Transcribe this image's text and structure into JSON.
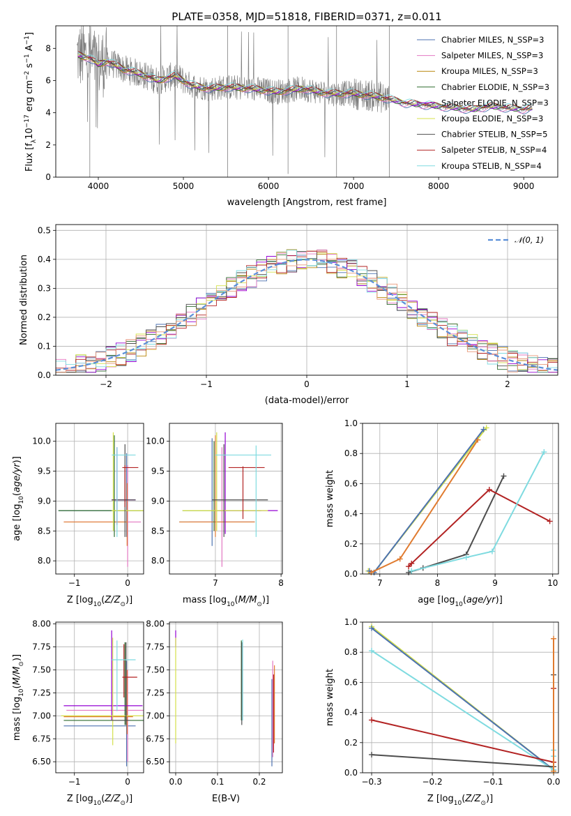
{
  "colors": {
    "chabrier_miles": "#4c72b0",
    "salpeter_miles": "#e377c2",
    "kroupa_miles": "#b8860b",
    "chabrier_elodie": "#2e6b2e",
    "salpeter_elodie": "#9400d3",
    "kroupa_elodie": "#d4e04a",
    "chabrier_stelib": "#4d4d4d",
    "salpeter_stelib": "#b22222",
    "kroupa_stelib": "#7fdbe0",
    "kroupa_orange": "#e07b2f",
    "hist_peach": "#e89a7a",
    "data_grey": "#808080",
    "normal_dash": "#5b8fd9"
  },
  "chart_data": [
    {
      "id": "spectrum",
      "type": "line",
      "title": "PLATE=0358, MJD=51818, FIBERID=0371, z=0.011",
      "xlabel": "wavelength [Angstrom, rest frame]",
      "ylabel": "Flux [f_λ 10^-17 erg cm^-2 s^-1 A^-1]",
      "xlim": [
        3500,
        9400
      ],
      "ylim": [
        0,
        9.4
      ],
      "xticks": [
        4000,
        5000,
        6000,
        7000,
        8000,
        9000
      ],
      "yticks": [
        0,
        2,
        4,
        6,
        8
      ],
      "grid": false,
      "legend_position": "top-right",
      "legend": [
        {
          "label": "Chabrier MILES, N_SSP=3",
          "color_key": "chabrier_miles"
        },
        {
          "label": "Salpeter MILES, N_SSP=3",
          "color_key": "salpeter_miles"
        },
        {
          "label": "Kroupa MILES, N_SSP=3",
          "color_key": "kroupa_miles"
        },
        {
          "label": "Chabrier ELODIE, N_SSP=3",
          "color_key": "chabrier_elodie"
        },
        {
          "label": "Salpeter ELODIE, N_SSP=3",
          "color_key": "salpeter_elodie"
        },
        {
          "label": "Kroupa ELODIE, N_SSP=3",
          "color_key": "kroupa_elodie"
        },
        {
          "label": "Chabrier STELIB, N_SSP=5",
          "color_key": "chabrier_stelib"
        },
        {
          "label": "Salpeter STELIB, N_SSP=4",
          "color_key": "salpeter_stelib"
        },
        {
          "label": "Kroupa STELIB, N_SSP=4",
          "color_key": "kroupa_stelib"
        }
      ],
      "continuum": {
        "x": [
          3750,
          3900,
          4000,
          4100,
          4300,
          4500,
          4700,
          4900,
          5100,
          5300,
          5500,
          5800,
          6100,
          6400,
          6700,
          7000,
          7300,
          7600,
          7800,
          8000,
          8200,
          8400,
          8600,
          8800,
          9000,
          9100
        ],
        "y": [
          7.6,
          7.4,
          7.0,
          7.2,
          6.7,
          6.4,
          6.0,
          6.3,
          5.7,
          5.5,
          5.6,
          5.5,
          5.3,
          5.5,
          5.2,
          5.2,
          5.0,
          4.6,
          4.5,
          4.4,
          4.3,
          4.2,
          4.4,
          4.3,
          4.2,
          4.3
        ]
      }
    },
    {
      "id": "residuals",
      "type": "histogram",
      "xlabel": "(data-model)/error",
      "ylabel": "Normed distribution",
      "xlim": [
        -2.5,
        2.5
      ],
      "ylim": [
        0,
        0.52
      ],
      "xticks": [
        -2,
        -1,
        0,
        1,
        2
      ],
      "yticks": [
        0.0,
        0.1,
        0.2,
        0.3,
        0.4,
        0.5
      ],
      "grid": true,
      "legend_position": "top-right",
      "legend": [
        {
          "label": "𝒩(0, 1)",
          "style": "dashed",
          "color_key": "normal_dash"
        }
      ],
      "bin_width": 0.1,
      "bin_start": -2.5
    },
    {
      "id": "age_vs_Z",
      "type": "errorbar",
      "xlabel": "Z [log10(Z/Z☉)]",
      "ylabel": "age [log10(age/yr)]",
      "xlim": [
        -1.35,
        0.3
      ],
      "ylim": [
        7.78,
        10.3
      ],
      "xticks": [
        -1,
        0
      ],
      "yticks": [
        8.0,
        8.5,
        9.0,
        9.5,
        10.0
      ],
      "grid": true
    },
    {
      "id": "age_vs_mass",
      "type": "errorbar",
      "xlabel": "mass [log10(M/M☉)]",
      "ylabel": "",
      "xlim": [
        6.3,
        8.02
      ],
      "ylim": [
        7.78,
        10.3
      ],
      "xticks": [
        7,
        8
      ],
      "yticks": [
        8.0,
        8.5,
        9.0,
        9.5,
        10.0
      ],
      "grid": true
    },
    {
      "id": "massweight_vs_age",
      "type": "line",
      "xlabel": "age [log10(age/yr)]",
      "ylabel": "mass weight",
      "xlim": [
        6.7,
        10.1
      ],
      "ylim": [
        0,
        1
      ],
      "xticks": [
        7,
        8,
        9,
        10
      ],
      "yticks": [
        0.0,
        0.2,
        0.4,
        0.6,
        0.8,
        1.0
      ],
      "grid": true,
      "series": [
        {
          "color_key": "kroupa_elodie",
          "x": [
            6.8,
            6.9,
            8.85
          ],
          "y": [
            0.02,
            0.01,
            0.97
          ]
        },
        {
          "color_key": "chabrier_miles",
          "x": [
            6.82,
            6.9,
            8.8
          ],
          "y": [
            0.02,
            0.01,
            0.96
          ]
        },
        {
          "color_key": "kroupa_orange",
          "x": [
            6.85,
            7.35,
            8.7
          ],
          "y": [
            0.01,
            0.1,
            0.89
          ]
        },
        {
          "color_key": "chabrier_stelib",
          "x": [
            7.5,
            7.75,
            8.5,
            9.15
          ],
          "y": [
            0.01,
            0.04,
            0.13,
            0.65
          ]
        },
        {
          "color_key": "salpeter_stelib",
          "x": [
            7.5,
            7.55,
            8.9,
            9.95
          ],
          "y": [
            0.05,
            0.07,
            0.56,
            0.35
          ]
        },
        {
          "color_key": "kroupa_stelib",
          "x": [
            7.55,
            8.5,
            8.95,
            9.85
          ],
          "y": [
            0.02,
            0.11,
            0.15,
            0.81
          ]
        }
      ]
    },
    {
      "id": "mass_vs_Z",
      "type": "errorbar",
      "xlabel": "Z [log10(Z/Z☉)]",
      "ylabel": "mass [log10(M/M☉)]",
      "xlim": [
        -1.35,
        0.3
      ],
      "ylim": [
        6.38,
        8.02
      ],
      "xticks": [
        -1,
        0
      ],
      "yticks": [
        6.5,
        6.75,
        7.0,
        7.25,
        7.5,
        7.75,
        8.0
      ],
      "grid": true
    },
    {
      "id": "mass_vs_ebv",
      "type": "errorbar",
      "xlabel": "E(B-V)",
      "ylabel": "",
      "xlim": [
        -0.015,
        0.255
      ],
      "ylim": [
        6.38,
        8.02
      ],
      "xticks": [
        0.0,
        0.1,
        0.2
      ],
      "yticks": [
        6.5,
        6.75,
        7.0,
        7.25,
        7.5,
        7.75,
        8.0
      ],
      "grid": true
    },
    {
      "id": "massweight_vs_Z",
      "type": "line",
      "xlabel": "Z [log10(Z/Z☉)]",
      "ylabel": "mass weight",
      "xlim": [
        -0.315,
        0.008
      ],
      "ylim": [
        0,
        1
      ],
      "xticks": [
        -0.3,
        -0.2,
        -0.1,
        0.0
      ],
      "yticks": [
        0.0,
        0.2,
        0.4,
        0.6,
        0.8,
        1.0
      ],
      "grid": true,
      "series": [
        {
          "color_key": "kroupa_elodie",
          "x": [
            -0.3,
            0.0,
            0.0
          ],
          "y": [
            0.97,
            0.02,
            0.01
          ]
        },
        {
          "color_key": "chabrier_miles",
          "x": [
            -0.3,
            0.0
          ],
          "y": [
            0.96,
            0.02
          ]
        },
        {
          "color_key": "kroupa_stelib",
          "x": [
            -0.3,
            0.0,
            0.0,
            0.0
          ],
          "y": [
            0.81,
            0.02,
            0.11,
            0.15
          ]
        },
        {
          "color_key": "salpeter_stelib",
          "x": [
            -0.3,
            0.0,
            0.0
          ],
          "y": [
            0.35,
            0.07,
            0.56
          ]
        },
        {
          "color_key": "chabrier_stelib",
          "x": [
            -0.3,
            0.0,
            0.0
          ],
          "y": [
            0.12,
            0.04,
            0.65
          ]
        },
        {
          "color_key": "kroupa_orange",
          "x": [
            0.0,
            0.0
          ],
          "y": [
            0.01,
            0.89
          ]
        }
      ]
    }
  ]
}
